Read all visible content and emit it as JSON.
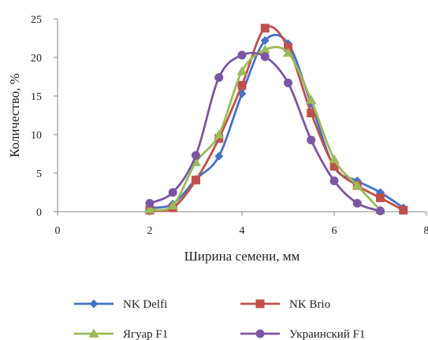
{
  "chart_data": {
    "type": "line",
    "title": "",
    "xlabel": "Ширина семени, мм",
    "ylabel": "Количество, %",
    "xlim": [
      0,
      8
    ],
    "ylim": [
      0,
      25
    ],
    "x_ticks": [
      "0",
      "2",
      "4",
      "6",
      "8"
    ],
    "y_ticks": [
      "0",
      "5",
      "10",
      "15",
      "20",
      "25"
    ],
    "grid": false,
    "smooth": true,
    "legend_position": "bottom",
    "series": [
      {
        "name": "NK Delfi",
        "color": "#4472C4",
        "marker": "diamond",
        "x": [
          2,
          2.5,
          3,
          3.5,
          4,
          4.5,
          5,
          5.5,
          6,
          6.5,
          7,
          7.5
        ],
        "y": [
          0.5,
          1.0,
          4.2,
          7.2,
          15.3,
          22.2,
          21.8,
          14.0,
          5.8,
          4.0,
          2.5,
          0.5
        ]
      },
      {
        "name": "NK Brio",
        "color": "#C0504D",
        "marker": "square",
        "x": [
          2,
          2.5,
          3,
          3.5,
          4,
          4.5,
          5,
          5.5,
          6,
          6.5,
          7,
          7.5
        ],
        "y": [
          0.2,
          0.5,
          4.1,
          9.5,
          16.4,
          23.8,
          21.3,
          12.8,
          5.9,
          3.4,
          1.8,
          0.2
        ]
      },
      {
        "name": "Ягуар F1",
        "color": "#9BBB59",
        "marker": "triangle",
        "x": [
          2,
          2.5,
          3,
          3.5,
          4,
          4.5,
          5,
          5.5,
          6,
          6.5,
          7
        ],
        "y": [
          0.3,
          0.8,
          6.4,
          10.0,
          18.2,
          21.0,
          20.6,
          14.5,
          6.8,
          3.4,
          0.2
        ]
      },
      {
        "name": "Украинский F1",
        "color": "#7B56A3",
        "marker": "circle",
        "x": [
          2,
          2.5,
          3,
          3.5,
          4,
          4.5,
          5,
          5.5,
          6,
          6.5,
          7
        ],
        "y": [
          1.1,
          2.5,
          7.3,
          17.4,
          20.3,
          20.1,
          16.7,
          9.3,
          4.0,
          1.1,
          0.1
        ]
      }
    ]
  }
}
